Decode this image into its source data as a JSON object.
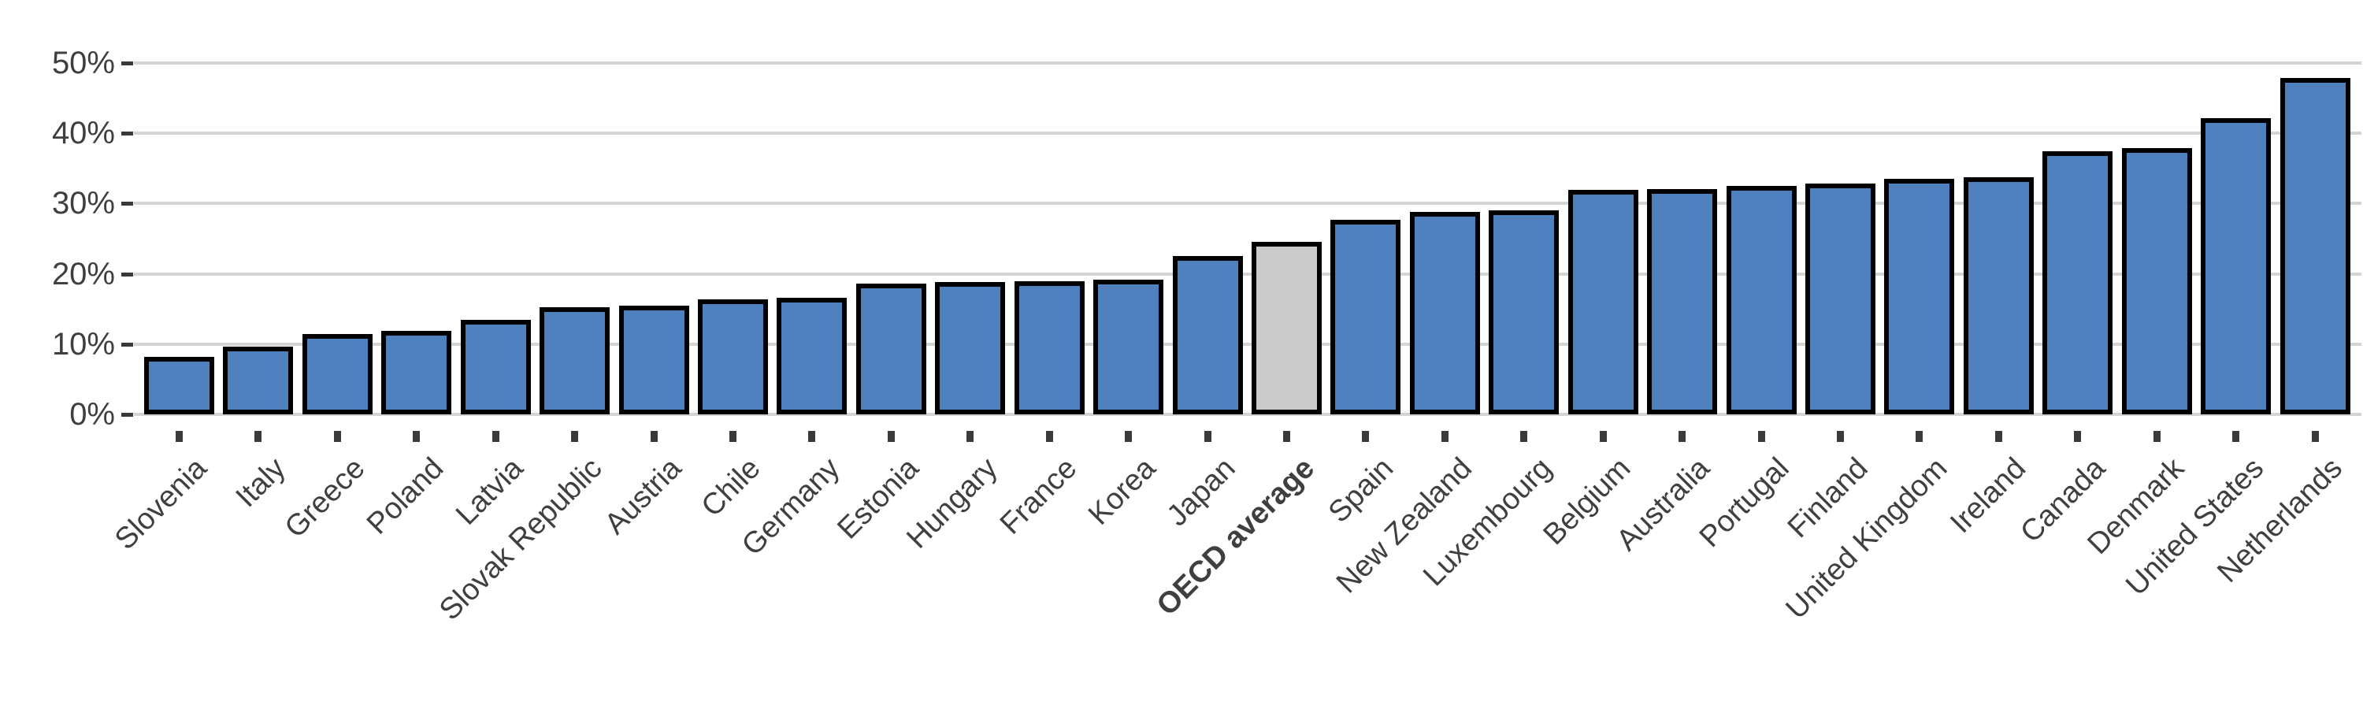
{
  "chart_data": {
    "type": "bar",
    "title": "",
    "xlabel": "",
    "ylabel": "",
    "categories": [
      "Slovenia",
      "Italy",
      "Greece",
      "Poland",
      "Latvia",
      "Slovak Republic",
      "Austria",
      "Chile",
      "Germany",
      "Estonia",
      "Hungary",
      "France",
      "Korea",
      "Japan",
      "OECD average",
      "Spain",
      "New Zealand",
      "Luxembourg",
      "Belgium",
      "Australia",
      "Portugal",
      "Finland",
      "United Kingdom",
      "Ireland",
      "Canada",
      "Denmark",
      "United States",
      "Netherlands"
    ],
    "values": [
      8.2,
      9.6,
      11.4,
      11.9,
      13.5,
      15.3,
      15.5,
      16.4,
      16.6,
      18.6,
      18.8,
      19.0,
      19.2,
      22.5,
      24.6,
      27.7,
      28.8,
      29.0,
      31.9,
      32.1,
      32.5,
      32.8,
      33.5,
      33.8,
      37.5,
      37.9,
      42.2,
      47.9
    ],
    "highlight_category": "OECD average",
    "y_ticks_percent": [
      0,
      10,
      20,
      30,
      40,
      50
    ],
    "y_tick_labels": [
      "0%",
      "10%",
      "20%",
      "30%",
      "40%",
      "50%"
    ],
    "ylim": [
      0,
      52
    ],
    "grid": true,
    "legend": "none",
    "colors": {
      "bar_fill": "#4d80bd",
      "highlight_bar_fill": "#cbcbcb",
      "bar_border": "#000000",
      "gridline": "#d4d4d4",
      "axis_text": "#3f3f3f",
      "tick_mark": "#3a3a3a",
      "background": "#ffffff"
    }
  }
}
